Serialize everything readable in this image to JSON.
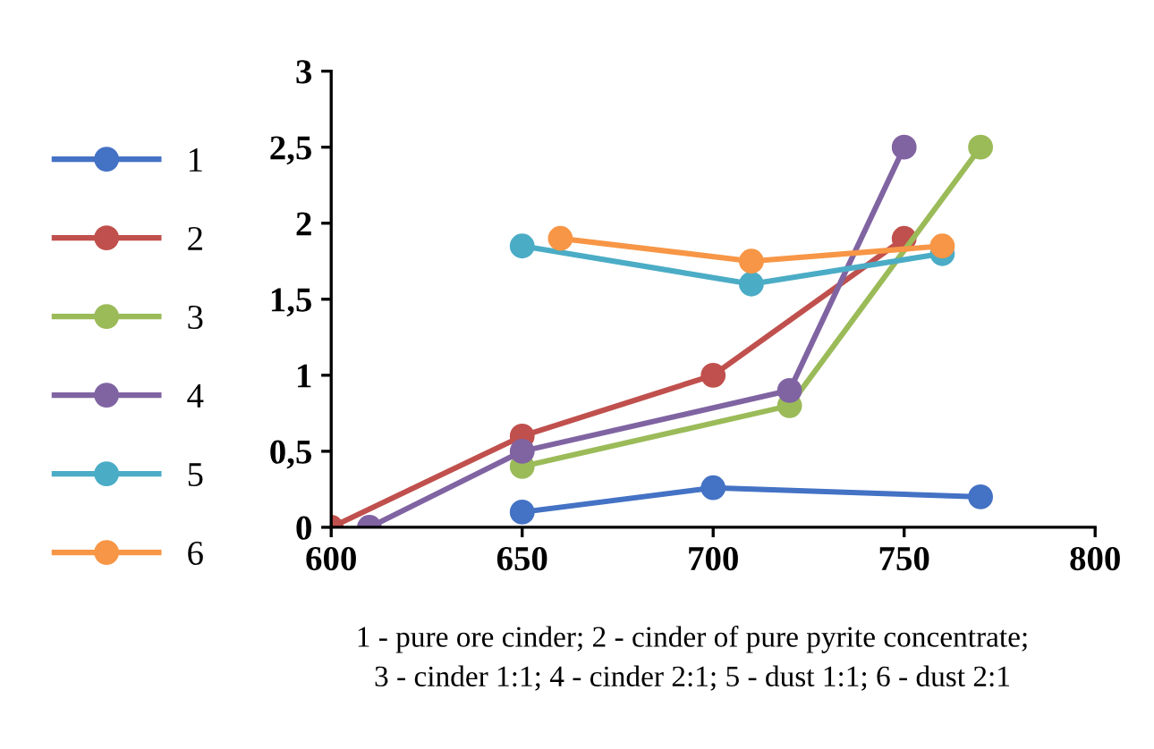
{
  "chart_data": {
    "type": "line",
    "series": [
      {
        "name": "1",
        "color": "#4472c4",
        "x": [
          650,
          700,
          770
        ],
        "values": [
          0.1,
          0.26,
          0.2
        ]
      },
      {
        "name": "2",
        "color": "#c0504d",
        "x": [
          600,
          650,
          700,
          750
        ],
        "values": [
          0,
          0.6,
          1.0,
          1.9
        ]
      },
      {
        "name": "3",
        "color": "#9bbb59",
        "x": [
          650,
          720,
          770
        ],
        "values": [
          0.4,
          0.8,
          2.5
        ]
      },
      {
        "name": "4",
        "color": "#8064a2",
        "x": [
          610,
          650,
          720,
          750
        ],
        "values": [
          0,
          0.5,
          0.9,
          2.5
        ]
      },
      {
        "name": "5",
        "color": "#4bacc6",
        "x": [
          650,
          710,
          760
        ],
        "values": [
          1.85,
          1.6,
          1.8
        ]
      },
      {
        "name": "6",
        "color": "#f79646",
        "x": [
          660,
          710,
          760
        ],
        "values": [
          1.9,
          1.75,
          1.85
        ]
      }
    ],
    "xlim": [
      600,
      800
    ],
    "xticks": [
      600,
      650,
      700,
      750,
      800
    ],
    "ylim": [
      0,
      3
    ],
    "yticks": [
      0,
      {
        "value": 0.5,
        "label": "0,5"
      },
      1,
      {
        "value": 1.5,
        "label": "1,5"
      },
      2,
      {
        "value": 2.5,
        "label": "2,5"
      },
      3
    ],
    "marker": "circle",
    "line_style": "solid",
    "grid": false,
    "legend": "left",
    "annotations": [
      "1 - pure ore cinder; 2 - cinder of pure pyrite concentrate;\n3 - cinder 1:1; 4 - cinder 2:1; 5 - dust 1:1; 6 - dust 2:1"
    ]
  }
}
